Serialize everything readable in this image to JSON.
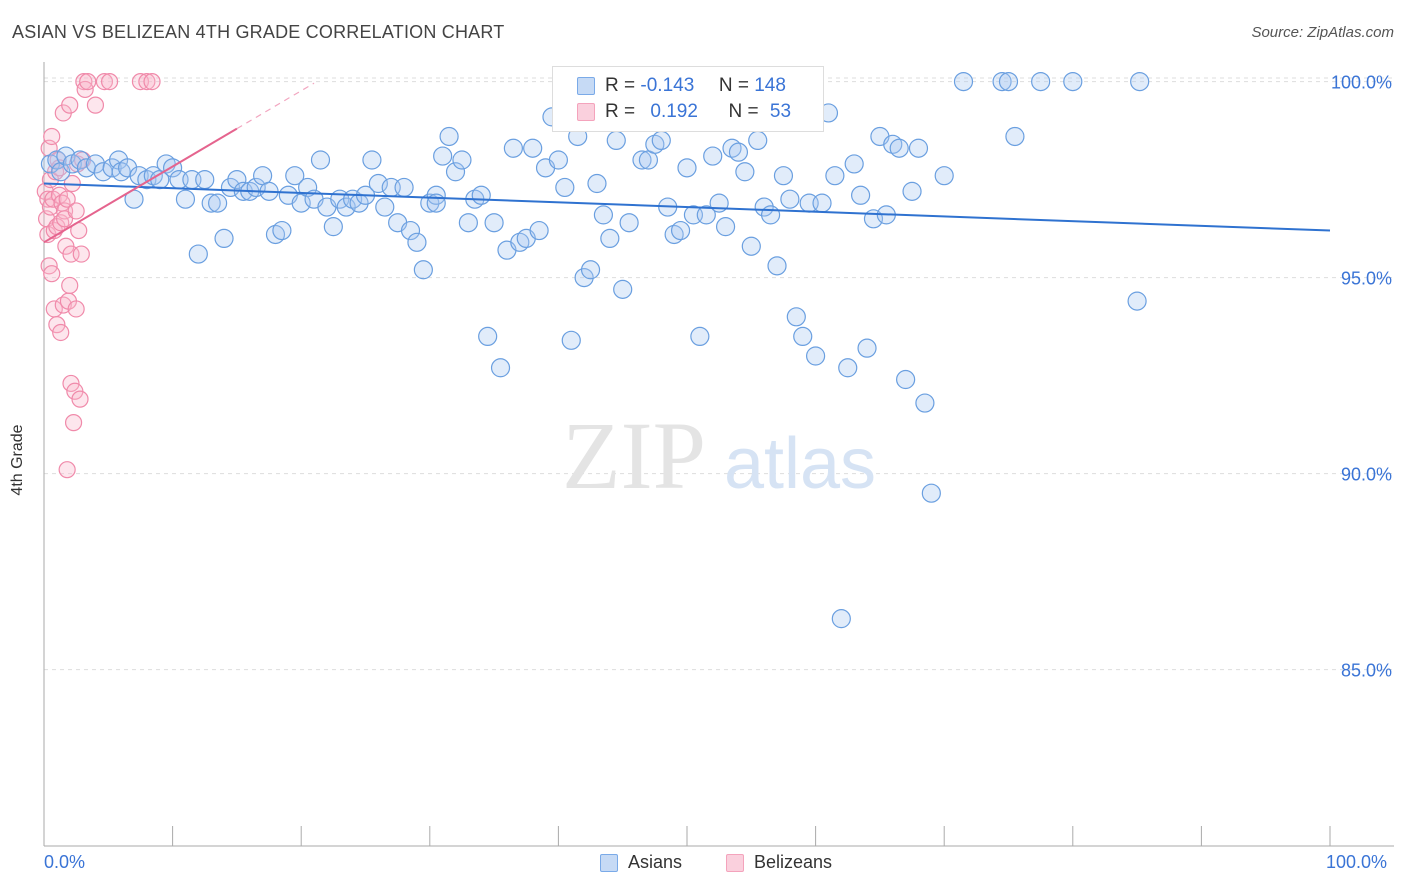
{
  "header": {
    "title": "ASIAN VS BELIZEAN 4TH GRADE CORRELATION CHART",
    "source": "Source: ZipAtlas.com"
  },
  "watermark": {
    "zip": "ZIP",
    "atlas": "atlas"
  },
  "legend": {
    "rows": [
      {
        "r_label": "R =",
        "r_value": "-0.143",
        "n_label": "N =",
        "n_value": "148",
        "color": "#7aaae8"
      },
      {
        "r_label": "R =",
        "r_value": "0.192",
        "n_label": "N =",
        "n_value": "53",
        "color": "#f4a3bc"
      }
    ]
  },
  "colors": {
    "blue": "#6a9fe0",
    "blue_line": "#2f72d0",
    "pink": "#f08aaa",
    "pink_line": "#e5648e",
    "grid": "#dddddd"
  },
  "chart_data": {
    "type": "scatter",
    "title": "ASIAN VS BELIZEAN 4TH GRADE CORRELATION CHART",
    "xlabel": "",
    "ylabel": "4th Grade",
    "xlim": [
      0,
      100
    ],
    "ylim": [
      80.5,
      100.5
    ],
    "y_ticks": [
      85,
      90,
      95,
      100
    ],
    "y_tick_labels": [
      "85.0%",
      "90.0%",
      "95.0%",
      "100.0%"
    ],
    "x_tick_labels": [
      "0.0%",
      "100.0%"
    ],
    "grid": true,
    "legend_position": "top-center",
    "series": [
      {
        "name": "Asians",
        "trend": {
          "x": [
            0,
            100
          ],
          "y": [
            97.4,
            96.2
          ]
        },
        "points": [
          [
            0.5,
            97.9
          ],
          [
            1.0,
            98.0
          ],
          [
            1.3,
            97.7
          ],
          [
            1.7,
            98.1
          ],
          [
            2.2,
            97.9
          ],
          [
            2.8,
            98.0
          ],
          [
            3.3,
            97.8
          ],
          [
            4.0,
            97.9
          ],
          [
            4.6,
            97.7
          ],
          [
            5.3,
            97.8
          ],
          [
            5.8,
            98.0
          ],
          [
            6.0,
            97.7
          ],
          [
            6.5,
            97.8
          ],
          [
            7.0,
            97.0
          ],
          [
            7.4,
            97.6
          ],
          [
            8.0,
            97.5
          ],
          [
            8.5,
            97.6
          ],
          [
            9.0,
            97.5
          ],
          [
            9.5,
            97.9
          ],
          [
            10.0,
            97.8
          ],
          [
            10.5,
            97.5
          ],
          [
            11.0,
            97.0
          ],
          [
            11.5,
            97.5
          ],
          [
            12.0,
            95.6
          ],
          [
            12.5,
            97.5
          ],
          [
            13.0,
            96.9
          ],
          [
            13.5,
            96.9
          ],
          [
            14.0,
            96.0
          ],
          [
            14.5,
            97.3
          ],
          [
            15.0,
            97.5
          ],
          [
            15.5,
            97.2
          ],
          [
            16.0,
            97.2
          ],
          [
            16.5,
            97.3
          ],
          [
            17.0,
            97.6
          ],
          [
            17.5,
            97.2
          ],
          [
            18.0,
            96.1
          ],
          [
            18.5,
            96.2
          ],
          [
            19.0,
            97.1
          ],
          [
            19.5,
            97.6
          ],
          [
            20.0,
            96.9
          ],
          [
            20.5,
            97.3
          ],
          [
            21.0,
            97.0
          ],
          [
            21.5,
            98.0
          ],
          [
            22.0,
            96.8
          ],
          [
            22.5,
            96.3
          ],
          [
            23.0,
            97.0
          ],
          [
            23.5,
            96.8
          ],
          [
            24.0,
            97.0
          ],
          [
            24.5,
            96.9
          ],
          [
            25.0,
            97.1
          ],
          [
            25.5,
            98.0
          ],
          [
            26.0,
            97.4
          ],
          [
            26.5,
            96.8
          ],
          [
            27.0,
            97.3
          ],
          [
            27.5,
            96.4
          ],
          [
            28.0,
            97.3
          ],
          [
            28.5,
            96.2
          ],
          [
            29.0,
            95.9
          ],
          [
            29.5,
            95.2
          ],
          [
            30.0,
            96.9
          ],
          [
            30.5,
            97.1
          ],
          [
            31.0,
            98.1
          ],
          [
            31.5,
            98.6
          ],
          [
            32.0,
            97.7
          ],
          [
            32.5,
            98.0
          ],
          [
            33.0,
            96.4
          ],
          [
            33.5,
            97.0
          ],
          [
            34.0,
            97.1
          ],
          [
            34.5,
            93.5
          ],
          [
            35.0,
            96.4
          ],
          [
            35.5,
            92.7
          ],
          [
            36.0,
            95.7
          ],
          [
            36.5,
            98.3
          ],
          [
            37.0,
            95.9
          ],
          [
            37.5,
            96.0
          ],
          [
            38.0,
            98.3
          ],
          [
            38.5,
            96.2
          ],
          [
            39.0,
            97.8
          ],
          [
            39.5,
            99.1
          ],
          [
            40.0,
            98.0
          ],
          [
            40.5,
            97.3
          ],
          [
            41.0,
            93.4
          ],
          [
            41.5,
            98.6
          ],
          [
            42.0,
            95.0
          ],
          [
            42.5,
            95.2
          ],
          [
            43.0,
            97.4
          ],
          [
            43.5,
            96.6
          ],
          [
            44.0,
            96.0
          ],
          [
            44.5,
            98.5
          ],
          [
            45.0,
            94.7
          ],
          [
            45.5,
            96.4
          ],
          [
            46.0,
            99.1
          ],
          [
            46.5,
            98.0
          ],
          [
            47.0,
            98.0
          ],
          [
            47.5,
            98.4
          ],
          [
            48.0,
            98.5
          ],
          [
            48.5,
            96.8
          ],
          [
            49.0,
            96.1
          ],
          [
            49.5,
            96.2
          ],
          [
            50.0,
            97.8
          ],
          [
            50.5,
            96.6
          ],
          [
            51.0,
            93.5
          ],
          [
            51.5,
            96.6
          ],
          [
            52.0,
            98.1
          ],
          [
            52.5,
            96.9
          ],
          [
            53.0,
            96.3
          ],
          [
            53.5,
            98.3
          ],
          [
            54.0,
            98.2
          ],
          [
            54.5,
            97.7
          ],
          [
            55.0,
            95.8
          ],
          [
            55.5,
            98.5
          ],
          [
            56.0,
            96.8
          ],
          [
            56.5,
            96.6
          ],
          [
            57.0,
            95.3
          ],
          [
            57.5,
            97.6
          ],
          [
            58.0,
            97.0
          ],
          [
            58.5,
            94.0
          ],
          [
            59.0,
            93.5
          ],
          [
            59.5,
            96.9
          ],
          [
            60.0,
            93.0
          ],
          [
            60.5,
            96.9
          ],
          [
            61.0,
            99.2
          ],
          [
            61.5,
            97.6
          ],
          [
            62.0,
            86.3
          ],
          [
            62.5,
            92.7
          ],
          [
            63.0,
            97.9
          ],
          [
            63.5,
            97.1
          ],
          [
            64.0,
            93.2
          ],
          [
            64.5,
            96.5
          ],
          [
            65.0,
            98.6
          ],
          [
            65.5,
            96.6
          ],
          [
            66.0,
            98.4
          ],
          [
            66.5,
            98.3
          ],
          [
            67.0,
            92.4
          ],
          [
            67.5,
            97.2
          ],
          [
            68.0,
            98.3
          ],
          [
            68.5,
            91.8
          ],
          [
            69.0,
            89.5
          ],
          [
            70.0,
            97.6
          ],
          [
            71.5,
            100.0
          ],
          [
            74.5,
            100.0
          ],
          [
            75.0,
            100.0
          ],
          [
            75.5,
            98.6
          ],
          [
            77.5,
            100.0
          ],
          [
            80.0,
            100.0
          ],
          [
            85.0,
            94.4
          ],
          [
            85.2,
            100.0
          ],
          [
            30.5,
            96.9
          ]
        ]
      },
      {
        "name": "Belizeans",
        "trend": {
          "x": [
            0,
            15
          ],
          "y": [
            95.9,
            98.8
          ]
        },
        "points": [
          [
            0.1,
            97.2
          ],
          [
            0.2,
            96.5
          ],
          [
            0.3,
            97.0
          ],
          [
            0.3,
            96.1
          ],
          [
            0.4,
            98.3
          ],
          [
            0.4,
            95.3
          ],
          [
            0.5,
            97.5
          ],
          [
            0.5,
            96.8
          ],
          [
            0.6,
            95.1
          ],
          [
            0.6,
            98.6
          ],
          [
            0.7,
            97.0
          ],
          [
            0.8,
            96.2
          ],
          [
            0.8,
            94.2
          ],
          [
            0.9,
            97.7
          ],
          [
            1.0,
            96.3
          ],
          [
            1.0,
            93.8
          ],
          [
            1.1,
            98.0
          ],
          [
            1.2,
            97.8
          ],
          [
            1.2,
            97.1
          ],
          [
            1.3,
            96.4
          ],
          [
            1.3,
            93.6
          ],
          [
            1.4,
            96.9
          ],
          [
            1.5,
            99.2
          ],
          [
            1.5,
            94.3
          ],
          [
            1.6,
            96.7
          ],
          [
            1.6,
            96.5
          ],
          [
            1.7,
            95.8
          ],
          [
            1.8,
            97.0
          ],
          [
            1.8,
            90.1
          ],
          [
            1.9,
            94.4
          ],
          [
            2.0,
            99.4
          ],
          [
            2.0,
            94.8
          ],
          [
            2.1,
            95.6
          ],
          [
            2.1,
            92.3
          ],
          [
            2.2,
            97.4
          ],
          [
            2.3,
            91.3
          ],
          [
            2.4,
            92.1
          ],
          [
            2.5,
            96.7
          ],
          [
            2.5,
            94.2
          ],
          [
            2.6,
            97.9
          ],
          [
            2.7,
            96.2
          ],
          [
            2.8,
            91.9
          ],
          [
            2.9,
            95.6
          ],
          [
            3.0,
            98.0
          ],
          [
            3.1,
            100.0
          ],
          [
            3.2,
            99.8
          ],
          [
            3.4,
            100.0
          ],
          [
            4.0,
            99.4
          ],
          [
            4.7,
            100.0
          ],
          [
            5.1,
            100.0
          ],
          [
            7.5,
            100.0
          ],
          [
            8.0,
            100.0
          ],
          [
            8.4,
            100.0
          ]
        ]
      }
    ]
  }
}
